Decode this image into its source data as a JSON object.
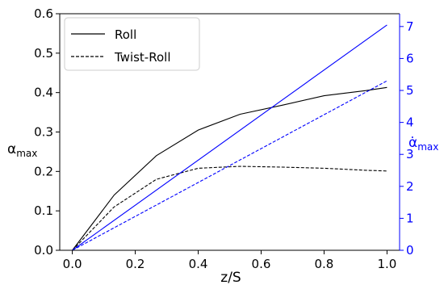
{
  "chart_data": {
    "type": "line",
    "xlabel": "z/S",
    "ylabel_left": {
      "base": "α",
      "sub": "max"
    },
    "ylabel_right": {
      "base": "α̇",
      "sub": "max"
    },
    "xlim": [
      -0.04,
      1.04
    ],
    "ylim_left": [
      0.0,
      0.6
    ],
    "ylim_right": [
      0,
      7.4
    ],
    "x_ticks": [
      0.0,
      0.2,
      0.4,
      0.6,
      0.8,
      1.0
    ],
    "x_tick_labels": [
      "0.0",
      "0.2",
      "0.4",
      "0.6",
      "0.8",
      "1.0"
    ],
    "y_left_ticks": [
      0.0,
      0.1,
      0.2,
      0.3,
      0.4,
      0.5,
      0.6
    ],
    "y_left_tick_labels": [
      "0.0",
      "0.1",
      "0.2",
      "0.3",
      "0.4",
      "0.5",
      "0.6"
    ],
    "y_right_ticks": [
      0,
      1,
      2,
      3,
      4,
      5,
      6,
      7
    ],
    "y_right_tick_labels": [
      "0",
      "1",
      "2",
      "3",
      "4",
      "5",
      "6",
      "7"
    ],
    "grid": false,
    "legend": {
      "position": "top-left",
      "entries": [
        "Roll",
        "Twist-Roll"
      ]
    },
    "colors": {
      "left": "#000000",
      "right": "#0000ff"
    },
    "series": [
      {
        "name": "Roll",
        "axis": "left",
        "color": "#000000",
        "dash": "solid",
        "x": [
          0.0,
          0.133,
          0.267,
          0.4,
          0.533,
          0.667,
          0.8,
          0.933,
          1.0
        ],
        "y": [
          0.0,
          0.14,
          0.24,
          0.305,
          0.345,
          0.368,
          0.392,
          0.405,
          0.413
        ]
      },
      {
        "name": "Twist-Roll",
        "axis": "left",
        "color": "#000000",
        "dash": "dashed",
        "x": [
          0.0,
          0.133,
          0.267,
          0.4,
          0.533,
          0.667,
          0.8,
          0.933,
          1.0
        ],
        "y": [
          0.0,
          0.11,
          0.18,
          0.208,
          0.213,
          0.211,
          0.208,
          0.203,
          0.201
        ]
      },
      {
        "axis": "right",
        "color": "#0000ff",
        "dash": "solid",
        "x": [
          0.0,
          1.0
        ],
        "y": [
          0.0,
          7.05
        ]
      },
      {
        "axis": "right",
        "color": "#0000ff",
        "dash": "dashed",
        "x": [
          0.0,
          1.0
        ],
        "y": [
          0.0,
          5.3
        ]
      }
    ]
  }
}
